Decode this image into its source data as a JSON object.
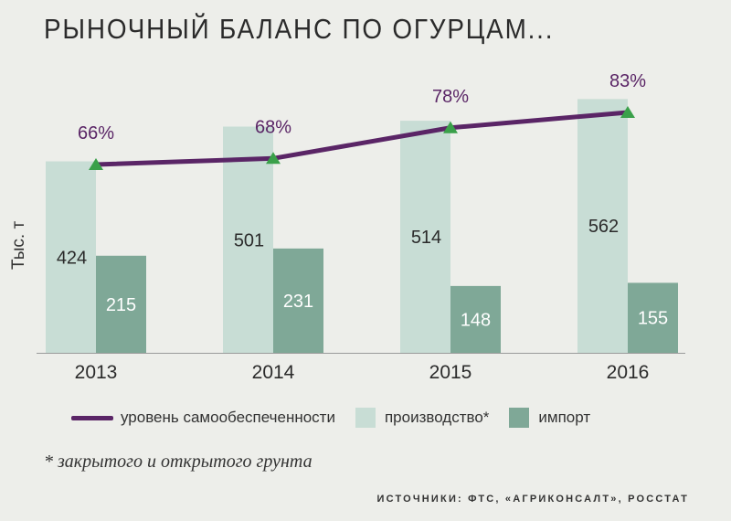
{
  "title": "РЫНОЧНЫЙ БАЛАНС ПО ОГУРЦАМ...",
  "footnote": "* закрытого и открытого грунта",
  "source": "ИСТОЧНИКИ: ФТС, «АГРИКОНСАЛТ», РОССТАТ",
  "legend": {
    "line_label": "уровень самообеспеченности",
    "production_label": "производство*",
    "import_label": "импорт"
  },
  "colors": {
    "production": "#c8ddd5",
    "import": "#7fa897",
    "line": "#5a2566",
    "marker": "#3aa04a",
    "text": "#333333"
  },
  "chart_data": {
    "type": "bar",
    "ylabel": "Тыс. т",
    "categories": [
      "2013",
      "2014",
      "2015",
      "2016"
    ],
    "series": [
      {
        "name": "производство*",
        "values": [
          424,
          501,
          514,
          562
        ]
      },
      {
        "name": "импорт",
        "values": [
          215,
          231,
          148,
          155
        ]
      }
    ],
    "line_series": {
      "name": "уровень самообеспеченности",
      "values": [
        66,
        68,
        78,
        83
      ],
      "labels": [
        "66%",
        "68%",
        "78%",
        "83%"
      ]
    }
  }
}
